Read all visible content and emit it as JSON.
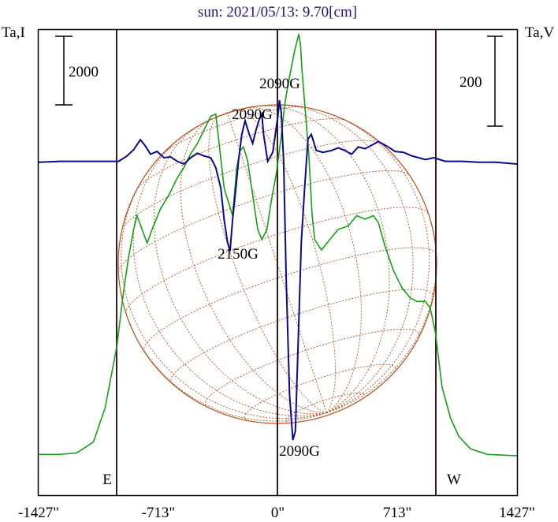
{
  "header": {
    "title": "sun: 2021/05/13: 9.70[cm]",
    "left_axis_label": "Ta,I",
    "right_axis_label": "Ta,V"
  },
  "scale_bars": {
    "intensity": "2000",
    "polarization": "200"
  },
  "limb_labels": {
    "east": "E",
    "west": "W"
  },
  "x_ticks": [
    "-1427\"",
    "-713\"",
    "0\"",
    "713\"",
    "1427\""
  ],
  "annotations": [
    "2090G",
    "2090G",
    "2150G",
    "2090G"
  ],
  "colors": {
    "frame": "#000000",
    "vertical_lines": "#3a1a1a",
    "intensity": "#14a014",
    "polarization": "#0a0a8c",
    "disk": "#b4501e",
    "title": "#1a1a6e"
  },
  "chart_data": {
    "type": "line",
    "title": "sun: 2021/05/13: 9.70[cm]",
    "xlabel": "",
    "ylabel_left": "Ta,I",
    "ylabel_right": "Ta,V",
    "x_ticks": [
      -1427,
      -713,
      0,
      713,
      1427
    ],
    "xlim": [
      -1427,
      1427
    ],
    "limb_positions": [
      -900,
      900
    ],
    "grid": false,
    "series": [
      {
        "points": [
          [
            -1427,
            2.0
          ],
          [
            -1300,
            2.1
          ],
          [
            -1200,
            4
          ],
          [
            -1100,
            20
          ],
          [
            -1030,
            70
          ],
          [
            -960,
            160
          ],
          [
            -920,
            240
          ],
          [
            -890,
            290
          ],
          [
            -860,
            330
          ],
          [
            -840,
            350
          ],
          [
            -810,
            330
          ],
          [
            -780,
            310
          ],
          [
            -750,
            330
          ],
          [
            -700,
            360
          ],
          [
            -650,
            380
          ],
          [
            -600,
            405
          ],
          [
            -560,
            420
          ],
          [
            -520,
            440
          ],
          [
            -480,
            455
          ],
          [
            -440,
            475
          ],
          [
            -400,
            495
          ],
          [
            -370,
            498
          ],
          [
            -320,
            390
          ],
          [
            -270,
            350
          ],
          [
            -245,
            420
          ],
          [
            -225,
            445
          ],
          [
            -205,
            450
          ],
          [
            -180,
            430
          ],
          [
            -150,
            380
          ],
          [
            -120,
            330
          ],
          [
            -95,
            315
          ],
          [
            -65,
            330
          ],
          [
            -40,
            370
          ],
          [
            -10,
            410
          ],
          [
            20,
            465
          ],
          [
            40,
            510
          ],
          [
            60,
            540
          ],
          [
            80,
            565
          ],
          [
            100,
            590
          ],
          [
            125,
            615
          ],
          [
            135,
            600
          ],
          [
            145,
            560
          ],
          [
            160,
            515
          ],
          [
            185,
            440
          ],
          [
            205,
            350
          ],
          [
            220,
            315
          ],
          [
            260,
            300
          ],
          [
            310,
            315
          ],
          [
            360,
            330
          ],
          [
            420,
            335
          ],
          [
            470,
            350
          ],
          [
            520,
            345
          ],
          [
            570,
            350
          ],
          [
            600,
            340
          ],
          [
            640,
            305
          ],
          [
            690,
            270
          ],
          [
            740,
            245
          ],
          [
            790,
            230
          ],
          [
            830,
            225
          ],
          [
            880,
            225
          ],
          [
            910,
            215
          ],
          [
            940,
            180
          ],
          [
            980,
            100
          ],
          [
            1030,
            55
          ],
          [
            1080,
            28
          ],
          [
            1150,
            10
          ],
          [
            1250,
            2
          ],
          [
            1427,
            0
          ]
        ]
      },
      {
        "points": [
          [
            -1427,
            9
          ],
          [
            -1300,
            10
          ],
          [
            -1200,
            10
          ],
          [
            -1100,
            10
          ],
          [
            -950,
            10
          ],
          [
            -900,
            16
          ],
          [
            -860,
            23
          ],
          [
            -820,
            34
          ],
          [
            -790,
            27
          ],
          [
            -760,
            18
          ],
          [
            -720,
            21
          ],
          [
            -680,
            14
          ],
          [
            -640,
            15
          ],
          [
            -600,
            10
          ],
          [
            -560,
            7
          ],
          [
            -520,
            14
          ],
          [
            -480,
            19
          ],
          [
            -440,
            16
          ],
          [
            -400,
            14
          ],
          [
            -370,
            3
          ],
          [
            -340,
            -20
          ],
          [
            -320,
            -55
          ],
          [
            -300,
            -80
          ],
          [
            -285,
            -90
          ],
          [
            -270,
            -55
          ],
          [
            -250,
            -20
          ],
          [
            -235,
            10
          ],
          [
            -215,
            40
          ],
          [
            -195,
            55
          ],
          [
            -170,
            40
          ],
          [
            -150,
            30
          ],
          [
            -130,
            45
          ],
          [
            -110,
            57
          ],
          [
            -95,
            62
          ],
          [
            -85,
            40
          ],
          [
            -60,
            10
          ],
          [
            -30,
            20
          ],
          [
            0,
            60
          ],
          [
            10,
            78
          ],
          [
            20,
            65
          ],
          [
            35,
            10
          ],
          [
            50,
            -120
          ],
          [
            70,
            -250
          ],
          [
            90,
            -300
          ],
          [
            105,
            -290
          ],
          [
            120,
            -200
          ],
          [
            140,
            -80
          ],
          [
            160,
            -20
          ],
          [
            180,
            35
          ],
          [
            200,
            40
          ],
          [
            230,
            22
          ],
          [
            270,
            20
          ],
          [
            320,
            22
          ],
          [
            360,
            25
          ],
          [
            400,
            22
          ],
          [
            440,
            18
          ],
          [
            480,
            26
          ],
          [
            520,
            24
          ],
          [
            560,
            28
          ],
          [
            600,
            32
          ],
          [
            650,
            27
          ],
          [
            700,
            21
          ],
          [
            750,
            20
          ],
          [
            800,
            16
          ],
          [
            840,
            14
          ],
          [
            880,
            12
          ],
          [
            930,
            14
          ],
          [
            1000,
            10
          ],
          [
            1100,
            10
          ],
          [
            1200,
            9
          ],
          [
            1300,
            9
          ],
          [
            1427,
            7
          ]
        ]
      }
    ]
  }
}
